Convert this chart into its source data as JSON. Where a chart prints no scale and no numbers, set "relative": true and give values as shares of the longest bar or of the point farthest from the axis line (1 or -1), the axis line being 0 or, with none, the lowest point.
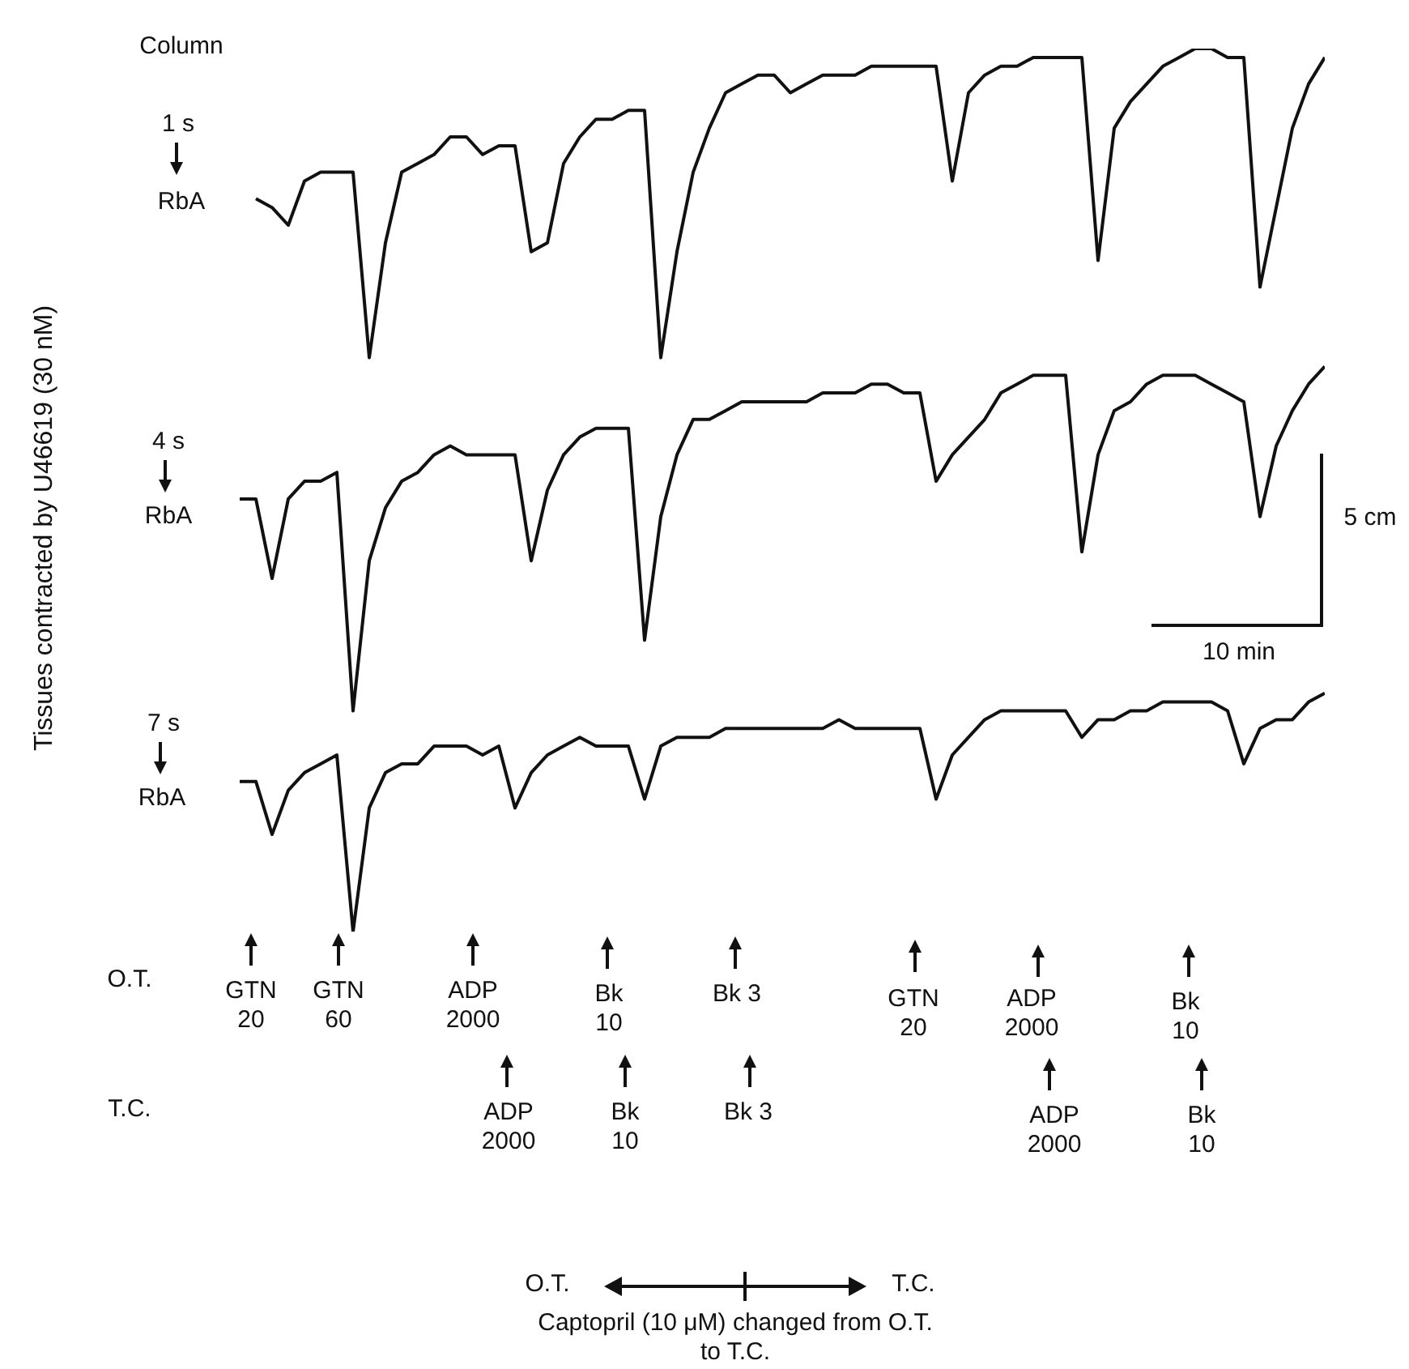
{
  "chart_data": {
    "type": "line",
    "relative": true,
    "legend": false,
    "marker": "none",
    "tick_labels": false,
    "categories": [
      null,
      null,
      null,
      null,
      null,
      null,
      null,
      null,
      null,
      null,
      null,
      null,
      null,
      null,
      null,
      null,
      null,
      null,
      null,
      null,
      null,
      null,
      null,
      null,
      null,
      null,
      null,
      null,
      null,
      null,
      null,
      null,
      null,
      null,
      null,
      null,
      null,
      null,
      null,
      null,
      null,
      null,
      null,
      null,
      null,
      null,
      null,
      null,
      null,
      null,
      null,
      null,
      null,
      null,
      null,
      null,
      null,
      null,
      null,
      null,
      null,
      null,
      null,
      null,
      null,
      null,
      null,
      null
    ],
    "series": [
      {
        "color": "#111111",
        "values": [
          null,
          0.83,
          0.82,
          0.8,
          0.85,
          0.86,
          0.86,
          0.86,
          0.65,
          0.78,
          0.86,
          0.87,
          0.88,
          0.9,
          0.9,
          0.88,
          0.89,
          0.89,
          0.77,
          0.78,
          0.87,
          0.9,
          0.92,
          0.92,
          0.93,
          0.93,
          0.65,
          0.77,
          0.86,
          0.91,
          0.95,
          0.96,
          0.97,
          0.97,
          0.95,
          0.96,
          0.97,
          0.97,
          0.97,
          0.98,
          0.98,
          0.98,
          0.98,
          0.98,
          0.85,
          0.95,
          0.97,
          0.98,
          0.98,
          0.99,
          0.99,
          0.99,
          0.99,
          0.76,
          0.91,
          0.94,
          0.96,
          0.98,
          0.99,
          1.0,
          1.0,
          0.99,
          0.99,
          0.73,
          0.82,
          0.91,
          0.96,
          0.99
        ]
      },
      {
        "color": "#111111",
        "values": [
          0.49,
          0.49,
          0.4,
          0.49,
          0.51,
          0.51,
          0.52,
          0.25,
          0.42,
          0.48,
          0.51,
          0.52,
          0.54,
          0.55,
          0.54,
          0.54,
          0.54,
          0.54,
          0.42,
          0.5,
          0.54,
          0.56,
          0.57,
          0.57,
          0.57,
          0.33,
          0.47,
          0.54,
          0.58,
          0.58,
          0.59,
          0.6,
          0.6,
          0.6,
          0.6,
          0.6,
          0.61,
          0.61,
          0.61,
          0.62,
          0.62,
          0.61,
          0.61,
          0.51,
          0.54,
          0.56,
          0.58,
          0.61,
          0.62,
          0.63,
          0.63,
          0.63,
          0.43,
          0.54,
          0.59,
          0.6,
          0.62,
          0.63,
          0.63,
          0.63,
          0.62,
          0.61,
          0.6,
          0.47,
          0.55,
          0.59,
          0.62,
          0.64
        ]
      },
      {
        "color": "#111111",
        "values": [
          0.17,
          0.17,
          0.11,
          0.16,
          0.18,
          0.19,
          0.2,
          0.0,
          0.14,
          0.18,
          0.19,
          0.19,
          0.21,
          0.21,
          0.21,
          0.2,
          0.21,
          0.14,
          0.18,
          0.2,
          0.21,
          0.22,
          0.21,
          0.21,
          0.21,
          0.15,
          0.21,
          0.22,
          0.22,
          0.22,
          0.23,
          0.23,
          0.23,
          0.23,
          0.23,
          0.23,
          0.23,
          0.24,
          0.23,
          0.23,
          0.23,
          0.23,
          0.23,
          0.15,
          0.2,
          0.22,
          0.24,
          0.25,
          0.25,
          0.25,
          0.25,
          0.25,
          0.22,
          0.24,
          0.24,
          0.25,
          0.25,
          0.26,
          0.26,
          0.26,
          0.26,
          0.25,
          0.19,
          0.23,
          0.24,
          0.24,
          0.26,
          0.27
        ]
      }
    ],
    "annotations": [
      "Column",
      "1 s",
      "RbA",
      "4 s",
      "RbA",
      "7 s",
      "RbA",
      "O.T.",
      "GTN 20",
      "GTN 60",
      "ADP 2000",
      "Bk 10",
      "Bk 3",
      "GTN 20",
      "ADP 2000",
      "Bk 10",
      "T.C.",
      "ADP 2000",
      "Bk 10",
      "Bk 3",
      "ADP 2000",
      "Bk 10",
      "5 cm",
      "10 min",
      "O.T.",
      "T.C.",
      "Captopril (10 μM) changed from O.T. to T.C.",
      "Tissues contracted by U46619 (30 nM)"
    ]
  }
}
